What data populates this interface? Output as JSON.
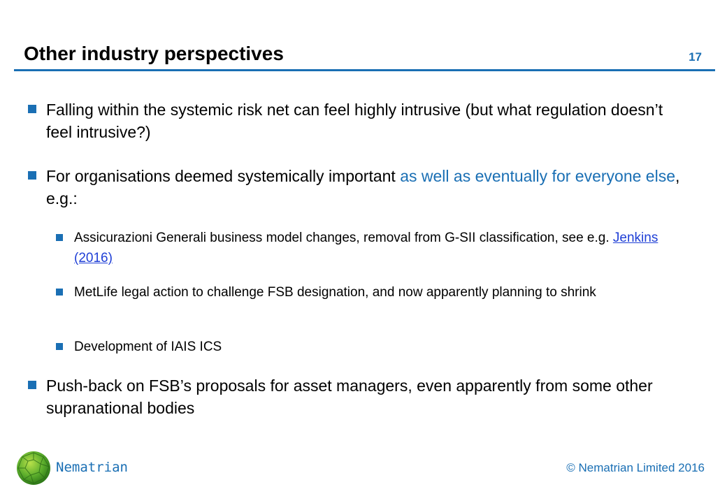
{
  "slide": {
    "title": "Other industry perspectives",
    "number": "17"
  },
  "bullets": {
    "b1": {
      "text": "Falling within the systemic risk net can feel highly intrusive (but what regulation doesn’t feel intrusive?)"
    },
    "b2": {
      "text_before": "For organisations deemed systemically important ",
      "text_highlight": "as well as eventually for everyone else",
      "text_after": ", e.g.:"
    },
    "sub1": {
      "text_before": "Assicurazioni Generali business model changes, removal from G-SII classification, see e.g. ",
      "link": "Jenkins (2016)"
    },
    "sub2": {
      "text": "MetLife legal action to challenge FSB designation, and now apparently planning to shrink"
    },
    "sub3": {
      "text": "Development of IAIS ICS"
    },
    "b3": {
      "text": "Push-back on FSB’s proposals for asset managers, even apparently from some other supranational bodies"
    }
  },
  "footer": {
    "brand": "Nematrian",
    "copyright": "© Nematrian Limited 2016",
    "logo_icon": "green-polyhedron-icon"
  },
  "colors": {
    "accent": "#1a6fb4",
    "link": "#1f3fd6"
  }
}
